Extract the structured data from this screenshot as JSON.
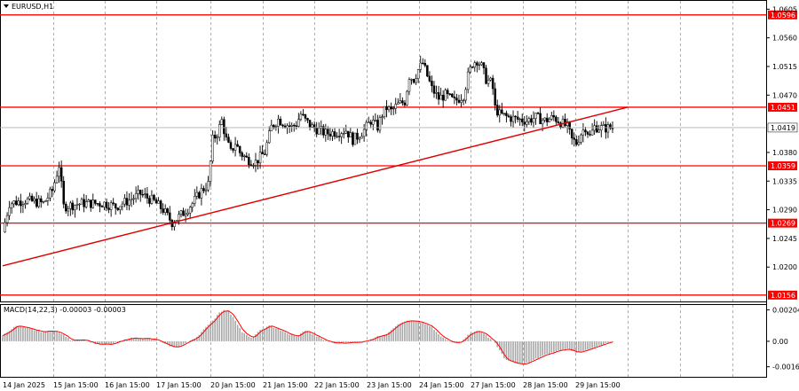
{
  "colors": {
    "background": "#ffffff",
    "grid": "#9a9a9a",
    "candle": "#000000",
    "level_line": "#ff0000",
    "trend_line": "#e00000",
    "price_line": "#b0b0b0",
    "macd_hist": "#a8a8a8",
    "macd_signal": "#ff0000"
  },
  "chart_data": [
    {
      "type": "candlestick",
      "title": "EURUSD,H1",
      "symbol": "EURUSD",
      "timeframe": "H1",
      "y_ticks": [
        "1.0605",
        "1.0560",
        "1.0515",
        "1.0470",
        "1.0380",
        "1.0335",
        "1.0290",
        "1.0245",
        "1.0200"
      ],
      "ylim": [
        1.0146,
        1.0618
      ],
      "x_labels": [
        "14 Jan 2025",
        "15 Jan 15:00",
        "16 Jan 15:00",
        "17 Jan 15:00",
        "20 Jan 15:00",
        "21 Jan 15:00",
        "22 Jan 15:00",
        "23 Jan 15:00",
        "24 Jan 15:00",
        "27 Jan 15:00",
        "28 Jan 15:00",
        "29 Jan 15:00"
      ],
      "current_price": {
        "label": "1.0419",
        "value": 1.0419
      },
      "levels": [
        {
          "label": "1.0596",
          "value": 1.0596
        },
        {
          "label": "1.0451",
          "value": 1.0451
        },
        {
          "label": "1.0359",
          "value": 1.0359
        },
        {
          "label": "1.0269",
          "value": 1.0269
        },
        {
          "label": "1.0156",
          "value": 1.0156
        }
      ],
      "trendline": {
        "start": {
          "x": "14 Jan 2025",
          "y": 1.0202
        },
        "end": {
          "x": "29 Jan 2025",
          "y": 1.0451
        }
      },
      "close_path": [
        [
          0,
          1.0255
        ],
        [
          3,
          1.03
        ],
        [
          10,
          1.0305
        ],
        [
          18,
          1.03
        ],
        [
          22,
          1.032
        ],
        [
          25,
          1.036
        ],
        [
          27,
          1.0295
        ],
        [
          35,
          1.03
        ],
        [
          45,
          1.03
        ],
        [
          50,
          1.0295
        ],
        [
          56,
          1.0305
        ],
        [
          61,
          1.0315
        ],
        [
          67,
          1.0303
        ],
        [
          71,
          1.029
        ],
        [
          75,
          1.027
        ],
        [
          80,
          1.0285
        ],
        [
          84,
          1.03
        ],
        [
          88,
          1.032
        ],
        [
          91,
          1.033
        ],
        [
          93,
          1.04
        ],
        [
          95,
          1.041
        ],
        [
          97,
          1.043
        ],
        [
          99,
          1.04
        ],
        [
          101,
          1.038
        ],
        [
          103,
          1.0395
        ],
        [
          105,
          1.038
        ],
        [
          108,
          1.037
        ],
        [
          112,
          1.0365
        ],
        [
          116,
          1.038
        ],
        [
          119,
          1.042
        ],
        [
          122,
          1.0432
        ],
        [
          125,
          1.0425
        ],
        [
          128,
          1.042
        ],
        [
          130,
          1.0425
        ],
        [
          132,
          1.044
        ],
        [
          134,
          1.043
        ],
        [
          137,
          1.042
        ],
        [
          140,
          1.0415
        ],
        [
          143,
          1.041
        ],
        [
          148,
          1.0412
        ],
        [
          152,
          1.0415
        ],
        [
          155,
          1.04
        ],
        [
          157,
          1.0405
        ],
        [
          160,
          1.0415
        ],
        [
          163,
          1.043
        ],
        [
          166,
          1.042
        ],
        [
          168,
          1.044
        ],
        [
          170,
          1.045
        ],
        [
          172,
          1.0445
        ],
        [
          175,
          1.0455
        ],
        [
          178,
          1.046
        ],
        [
          180,
          1.05
        ],
        [
          182,
          1.0495
        ],
        [
          184,
          1.051
        ],
        [
          186,
          1.052
        ],
        [
          188,
          1.05
        ],
        [
          190,
          1.048
        ],
        [
          193,
          1.0465
        ],
        [
          196,
          1.047
        ],
        [
          198,
          1.0465
        ],
        [
          200,
          1.046
        ],
        [
          204,
          1.047
        ],
        [
          206,
          1.05
        ],
        [
          208,
          1.052
        ],
        [
          210,
          1.0525
        ],
        [
          212,
          1.0515
        ],
        [
          214,
          1.0495
        ],
        [
          216,
          1.049
        ],
        [
          217,
          1.048
        ],
        [
          218,
          1.045
        ],
        [
          220,
          1.044
        ],
        [
          224,
          1.0435
        ],
        [
          228,
          1.0432
        ],
        [
          232,
          1.043
        ],
        [
          236,
          1.0435
        ],
        [
          240,
          1.043
        ],
        [
          244,
          1.0435
        ],
        [
          246,
          1.043
        ],
        [
          248,
          1.0425
        ],
        [
          250,
          1.042
        ],
        [
          252,
          1.04
        ],
        [
          254,
          1.0395
        ],
        [
          256,
          1.041
        ],
        [
          258,
          1.042
        ],
        [
          260,
          1.0405
        ],
        [
          262,
          1.042
        ],
        [
          266,
          1.0418
        ],
        [
          270,
          1.0419
        ]
      ]
    },
    {
      "type": "bar",
      "title": "MACD(14,22,3) -0.00003 -0.00003",
      "indicator": "MACD",
      "params": [
        14,
        22,
        3
      ],
      "values_shown": [
        -3e-05,
        -3e-05
      ],
      "y_ticks": [
        "0.00204",
        "0.00",
        "-0.00165"
      ],
      "ylim": [
        -0.0023,
        0.00235
      ],
      "histogram_path": [
        [
          0,
          0.0004
        ],
        [
          6,
          0.001
        ],
        [
          12,
          0.0008
        ],
        [
          18,
          0.0006
        ],
        [
          22,
          0.0007
        ],
        [
          26,
          0.0005
        ],
        [
          30,
          0.0001
        ],
        [
          36,
          0.0001
        ],
        [
          42,
          -0.0002
        ],
        [
          48,
          -0.0002
        ],
        [
          56,
          0.0002
        ],
        [
          62,
          0.0002
        ],
        [
          68,
          0.0001
        ],
        [
          72,
          -0.0002
        ],
        [
          76,
          -0.0004
        ],
        [
          80,
          -0.0002
        ],
        [
          86,
          0.0003
        ],
        [
          90,
          0.0009
        ],
        [
          94,
          0.0015
        ],
        [
          96,
          0.0019
        ],
        [
          98,
          0.002
        ],
        [
          100,
          0.0019
        ],
        [
          102,
          0.0016
        ],
        [
          104,
          0.0011
        ],
        [
          106,
          0.0006
        ],
        [
          110,
          0.0002
        ],
        [
          114,
          0.0007
        ],
        [
          118,
          0.001
        ],
        [
          122,
          0.0008
        ],
        [
          126,
          0.0005
        ],
        [
          130,
          0.0003
        ],
        [
          134,
          0.0007
        ],
        [
          138,
          0.0004
        ],
        [
          142,
          0.0001
        ],
        [
          146,
          -0.0001
        ],
        [
          154,
          -0.0001
        ],
        [
          160,
          0.0
        ],
        [
          164,
          0.0002
        ],
        [
          170,
          0.0005
        ],
        [
          174,
          0.001
        ],
        [
          178,
          0.0013
        ],
        [
          182,
          0.0013
        ],
        [
          186,
          0.0012
        ],
        [
          190,
          0.0009
        ],
        [
          194,
          0.0003
        ],
        [
          198,
          0.0
        ],
        [
          202,
          -0.0001
        ],
        [
          206,
          0.0004
        ],
        [
          210,
          0.0007
        ],
        [
          214,
          0.0004
        ],
        [
          218,
          -0.0001
        ],
        [
          222,
          -0.0011
        ],
        [
          226,
          -0.0014
        ],
        [
          230,
          -0.0015
        ],
        [
          234,
          -0.0013
        ],
        [
          238,
          -0.001
        ],
        [
          242,
          -0.0008
        ],
        [
          246,
          -0.0006
        ],
        [
          250,
          -0.0005
        ],
        [
          254,
          -0.0007
        ],
        [
          258,
          -0.0006
        ],
        [
          262,
          -0.0004
        ],
        [
          266,
          -0.0002
        ],
        [
          270,
          -3e-05
        ]
      ]
    }
  ]
}
